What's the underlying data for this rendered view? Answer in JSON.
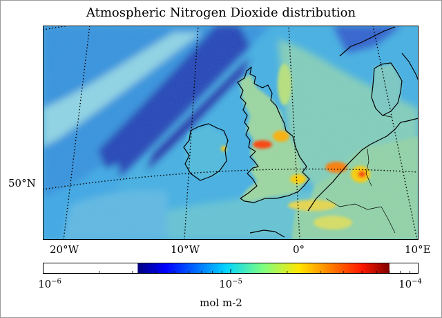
{
  "title": "Atmospheric Nitrogen Dioxide distribution",
  "map": {
    "region": "North-west Europe (British Isles, North Sea, Benelux, Denmark)",
    "projection": "conic",
    "graticule": {
      "style": "dotted"
    },
    "lon_labels": [
      "20°W",
      "10°W",
      "0°",
      "10°E"
    ],
    "lat_labels": [
      "50°N"
    ],
    "colors": {
      "ocean_low": "#1f3fb8",
      "background": "#40b7e8",
      "land_mid": "#8fd0a8",
      "hotspot": "#ff2a00",
      "coast": "#000000"
    }
  },
  "colorbar": {
    "scale": "log",
    "range": [
      1e-06,
      0.0001
    ],
    "colored_range": [
      3.2e-06,
      7e-05
    ],
    "ticks": [
      {
        "base": "10",
        "exp": "−6"
      },
      {
        "base": "10",
        "exp": "−5"
      },
      {
        "base": "10",
        "exp": "−4"
      }
    ],
    "units": "mol m-2",
    "colormap": "jet"
  }
}
